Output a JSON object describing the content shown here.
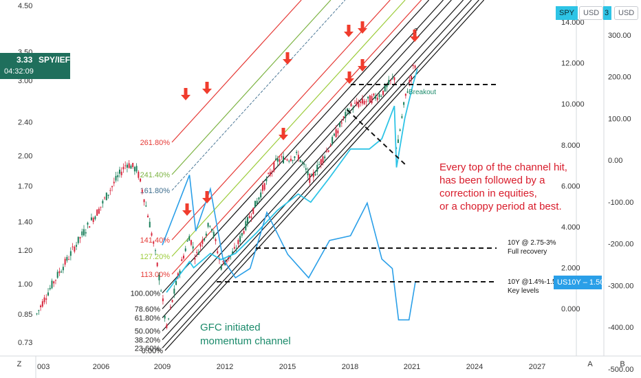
{
  "colors": {
    "spy": "#2ec4e6",
    "ratio": "#2a9fe8",
    "candle_up": "#1a7f5a",
    "candle_down": "#d7263d",
    "arrow": "#f03c2d",
    "annotation_red": "#d81b2a",
    "annotation_teal": "#1a8a6a",
    "spy_tag": "#2ec4e6",
    "us10y_tag": "#2a9fe8",
    "ratio_tag": "#1f6f5c"
  },
  "header": {
    "spy_label": "SPY",
    "usd_label": "USD",
    "usd_label_2": "USD",
    "partial_price": "3",
    "ratio_value": "3.33",
    "ratio_name": "SPY/IEF",
    "countdown": "04:32:09",
    "us10y_tag": "US10Y",
    "us10y_value": "1.505"
  },
  "corners": {
    "left": "Z",
    "a": "A",
    "b": "B"
  },
  "chart_data": {
    "type": "line",
    "x_ticks": [
      "003",
      "2006",
      "2009",
      "2012",
      "2015",
      "2018",
      "2021",
      "2024",
      "2027"
    ],
    "left_axis": {
      "scale": "log",
      "ticks": [
        "4.50",
        "3.50",
        "3.00",
        "2.40",
        "2.00",
        "1.70",
        "1.40",
        "1.20",
        "1.00",
        "0.85",
        "0.73"
      ]
    },
    "spy_axis": {
      "ticks": [
        "14.000",
        "12.000",
        "10.000",
        "8.000",
        "6.000",
        "4.000",
        "2.000",
        "0.000"
      ]
    },
    "pct_axis": {
      "ticks": [
        "300.00",
        "200.00",
        "100.00",
        "0.00",
        "-100.00",
        "-200.00",
        "-300.00",
        "-400.00",
        "-500.00"
      ]
    },
    "fib_levels": [
      {
        "label": "261.80%",
        "color": "#e53935"
      },
      {
        "label": "241.40%",
        "color": "#7cb342"
      },
      {
        "label": "161.80%",
        "color": "#3b6b8c"
      },
      {
        "label": "141.40%",
        "color": "#e53935"
      },
      {
        "label": "127.20%",
        "color": "#9ccc3a"
      },
      {
        "label": "113.00%",
        "color": "#e53935"
      },
      {
        "label": "100.00%",
        "color": "#111111"
      },
      {
        "label": "78.60%",
        "color": "#111111"
      },
      {
        "label": "61.80%",
        "color": "#111111"
      },
      {
        "label": "50.00%",
        "color": "#111111"
      },
      {
        "label": "38.20%",
        "color": "#111111"
      },
      {
        "label": "23.60%",
        "color": "#111111"
      },
      {
        "label": "0.00%",
        "color": "#111111"
      }
    ],
    "series": [
      {
        "name": "SPY",
        "x": [
          2009.2,
          2010.3,
          2010.5,
          2011.3,
          2011.8,
          2012.5,
          2013.5,
          2014.5,
          2015.5,
          2016.1,
          2017.0,
          2018.0,
          2018.9,
          2019.5,
          2020.1,
          2020.2,
          2020.6,
          2021.0,
          2021.2
        ],
        "values": [
          0.8,
          2.3,
          2.0,
          2.7,
          2.4,
          2.7,
          3.7,
          4.8,
          5.6,
          5.2,
          6.4,
          7.8,
          7.8,
          8.3,
          9.9,
          6.9,
          9.3,
          11.0,
          11.7
        ]
      },
      {
        "name": "US10Y",
        "x": [
          2009.0,
          2010.3,
          2010.6,
          2011.3,
          2011.9,
          2012.5,
          2013.2,
          2014.0,
          2015.0,
          2016.0,
          2017.0,
          2018.0,
          2018.8,
          2019.5,
          2020.0,
          2020.3,
          2020.8,
          2021.1
        ],
        "values": [
          2.3,
          3.8,
          2.6,
          3.5,
          2.0,
          1.6,
          1.8,
          3.0,
          2.1,
          1.6,
          2.4,
          2.5,
          3.2,
          2.0,
          1.8,
          0.7,
          0.7,
          1.5
        ]
      },
      {
        "name": "SPY/IEF",
        "x": [
          2003.0,
          2004.5,
          2006.0,
          2007.3,
          2007.8,
          2008.7,
          2009.2,
          2010.3,
          2010.6,
          2011.3,
          2011.8,
          2012.5,
          2013.5,
          2014.5,
          2015.5,
          2016.1,
          2017.0,
          2018.0,
          2018.9,
          2019.5,
          2020.1,
          2020.2,
          2020.6,
          2021.0,
          2021.2
        ],
        "values": [
          0.85,
          1.15,
          1.5,
          1.92,
          1.85,
          1.15,
          0.78,
          1.3,
          1.15,
          1.4,
          1.1,
          1.2,
          1.55,
          1.95,
          2.0,
          1.75,
          2.1,
          2.6,
          2.7,
          2.8,
          3.05,
          2.0,
          2.7,
          3.2,
          3.33
        ]
      }
    ],
    "horizontal_levels": [
      {
        "label_line1": "10Y @ 2.75-3%",
        "label_line2": "Full recovery"
      },
      {
        "label_line1": "10Y @1.4%-1.5%",
        "label_line2": "Key levels"
      }
    ],
    "annotations": {
      "breakout": "Breakout",
      "right_note": [
        "Every top of the channel hit,",
        "has been followed by a",
        "correction in equities,",
        "or a choppy period at best."
      ],
      "bottom_note": [
        "GFC initiated",
        "momentum channel"
      ],
      "question": "?"
    }
  }
}
